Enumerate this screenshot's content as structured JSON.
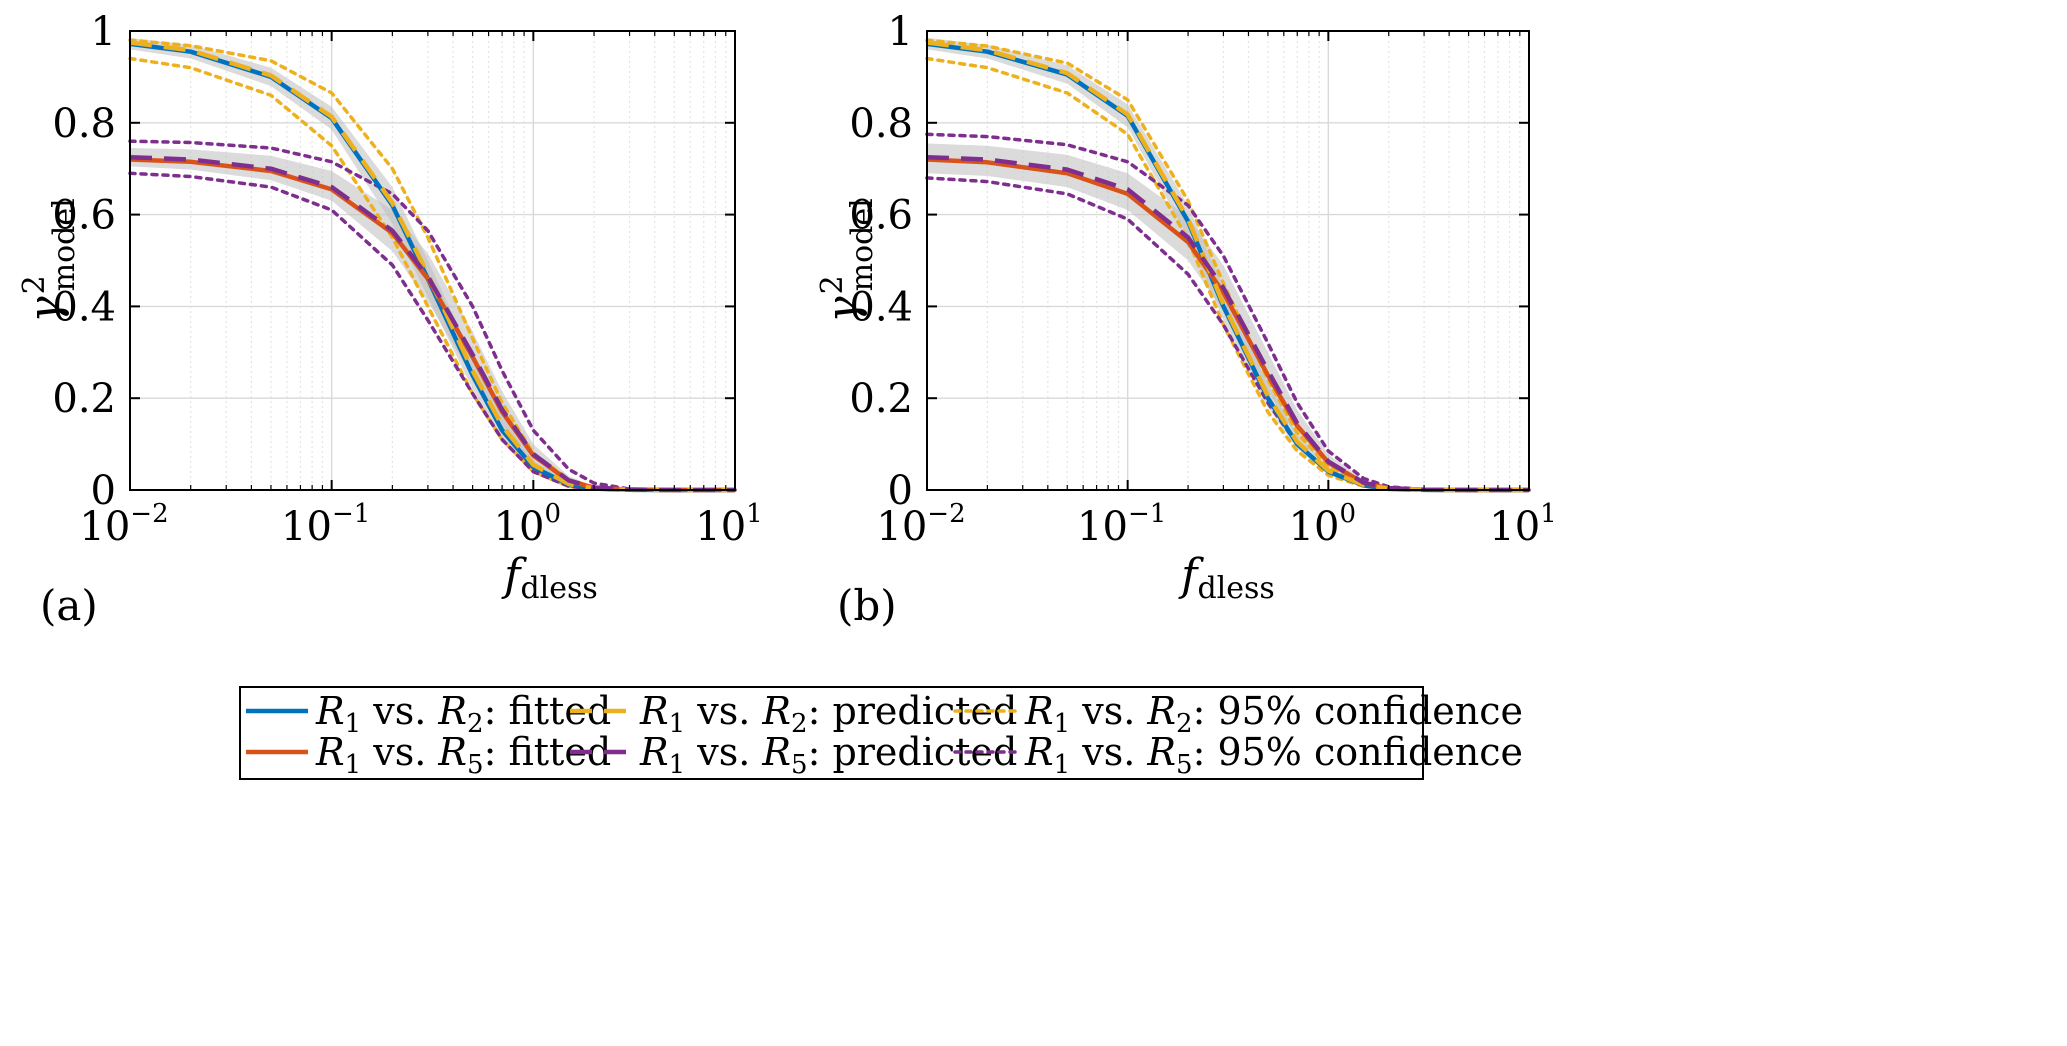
{
  "colors": {
    "r2_fitted": "#0072BD",
    "r2_predicted": "#EDB120",
    "r2_confidence": "#EDB120",
    "r5_fitted": "#D95319",
    "r5_predicted": "#7E2F8E",
    "r5_confidence": "#7E2F8E",
    "band": "#bdbdbd",
    "grid": "#d9d9d9"
  },
  "chart_data": [
    {
      "panel_label": "(a)",
      "type": "line",
      "xscale": "log",
      "xlim": [
        0.01,
        10
      ],
      "ylim": [
        0,
        1
      ],
      "xlabel": {
        "base": "f",
        "subscript": "dless"
      },
      "ylabel": {
        "base": "γ",
        "superscript": "2",
        "subscript": "model"
      },
      "x_ticks": [
        {
          "base": "10",
          "exp": "−2"
        },
        {
          "base": "10",
          "exp": "−1"
        },
        {
          "base": "10",
          "exp": "0"
        },
        {
          "base": "10",
          "exp": "1"
        }
      ],
      "y_ticks": [
        "0",
        "0.2",
        "0.4",
        "0.6",
        "0.8",
        "1"
      ],
      "y_tick_values": [
        0,
        0.2,
        0.4,
        0.6,
        0.8,
        1
      ],
      "x_sample": [
        0.01,
        0.02,
        0.05,
        0.1,
        0.2,
        0.3,
        0.5,
        0.7,
        1,
        1.5,
        2,
        3,
        5,
        10
      ],
      "series": [
        {
          "name": "R1 vs. R2: fitted",
          "style": "solid",
          "color_key": "r2_fitted",
          "values": [
            0.972,
            0.955,
            0.9,
            0.81,
            0.62,
            0.46,
            0.25,
            0.13,
            0.05,
            0.012,
            0.003,
            0.0004,
            0,
            0
          ]
        },
        {
          "name": "R1 vs. R2: predicted",
          "style": "dashed",
          "color_key": "r2_predicted",
          "values": [
            0.975,
            0.958,
            0.903,
            0.813,
            0.625,
            0.47,
            0.26,
            0.14,
            0.055,
            0.013,
            0.0035,
            0.0005,
            0,
            0
          ]
        },
        {
          "name": "R1 vs. R2: 95% confidence (upper)",
          "style": "dotted",
          "color_key": "r2_confidence",
          "values": [
            0.98,
            0.968,
            0.935,
            0.865,
            0.7,
            0.55,
            0.33,
            0.19,
            0.08,
            0.022,
            0.006,
            0.001,
            0,
            0
          ]
        },
        {
          "name": "R1 vs. R2: 95% confidence (lower)",
          "style": "dotted",
          "color_key": "r2_confidence",
          "values": [
            0.94,
            0.92,
            0.86,
            0.75,
            0.55,
            0.4,
            0.21,
            0.11,
            0.04,
            0.008,
            0.002,
            0.0003,
            0,
            0
          ]
        },
        {
          "name": "R1 vs. R5: fitted",
          "style": "solid",
          "color_key": "r5_fitted",
          "values": [
            0.72,
            0.715,
            0.695,
            0.655,
            0.56,
            0.46,
            0.29,
            0.17,
            0.075,
            0.02,
            0.005,
            0.0008,
            0,
            0
          ]
        },
        {
          "name": "R1 vs. R5: predicted",
          "style": "dashed",
          "color_key": "r5_predicted",
          "values": [
            0.725,
            0.72,
            0.7,
            0.66,
            0.565,
            0.465,
            0.295,
            0.175,
            0.078,
            0.021,
            0.0055,
            0.0009,
            0,
            0
          ]
        },
        {
          "name": "R1 vs. R5: 95% confidence (upper)",
          "style": "dotted",
          "color_key": "r5_confidence",
          "values": [
            0.76,
            0.757,
            0.745,
            0.715,
            0.645,
            0.565,
            0.4,
            0.26,
            0.13,
            0.045,
            0.015,
            0.002,
            0,
            0
          ]
        },
        {
          "name": "R1 vs. R5: 95% confidence (lower)",
          "style": "dotted",
          "color_key": "r5_confidence",
          "values": [
            0.69,
            0.683,
            0.66,
            0.61,
            0.49,
            0.37,
            0.21,
            0.11,
            0.04,
            0.008,
            0.002,
            0.0003,
            0,
            0
          ]
        }
      ],
      "bands": [
        {
          "name": "R1 vs. R2 uncertainty",
          "upper": [
            0.985,
            0.97,
            0.92,
            0.835,
            0.66,
            0.5,
            0.29,
            0.16,
            0.065,
            0.016,
            0.004,
            0.0006,
            0,
            0
          ],
          "lower": [
            0.96,
            0.94,
            0.88,
            0.785,
            0.58,
            0.42,
            0.22,
            0.11,
            0.04,
            0.009,
            0.002,
            0.0003,
            0,
            0
          ]
        },
        {
          "name": "R1 vs. R5 uncertainty",
          "upper": [
            0.745,
            0.742,
            0.728,
            0.695,
            0.61,
            0.515,
            0.345,
            0.215,
            0.1,
            0.03,
            0.008,
            0.001,
            0,
            0
          ],
          "lower": [
            0.705,
            0.698,
            0.675,
            0.63,
            0.52,
            0.41,
            0.245,
            0.135,
            0.055,
            0.013,
            0.003,
            0.0004,
            0,
            0
          ]
        }
      ]
    },
    {
      "panel_label": "(b)",
      "type": "line",
      "xscale": "log",
      "xlim": [
        0.01,
        10
      ],
      "ylim": [
        0,
        1
      ],
      "xlabel": {
        "base": "f",
        "subscript": "dless"
      },
      "ylabel": {
        "base": "γ",
        "superscript": "2",
        "subscript": "model"
      },
      "x_ticks": [
        {
          "base": "10",
          "exp": "−2"
        },
        {
          "base": "10",
          "exp": "−1"
        },
        {
          "base": "10",
          "exp": "0"
        },
        {
          "base": "10",
          "exp": "1"
        }
      ],
      "y_ticks": [
        "0",
        "0.2",
        "0.4",
        "0.6",
        "0.8",
        "1"
      ],
      "y_tick_values": [
        0,
        0.2,
        0.4,
        0.6,
        0.8,
        1
      ],
      "x_sample": [
        0.01,
        0.02,
        0.05,
        0.1,
        0.2,
        0.3,
        0.5,
        0.7,
        1,
        1.5,
        2,
        3,
        5,
        10
      ],
      "series": [
        {
          "name": "R1 vs. R2: fitted",
          "style": "solid",
          "color_key": "r2_fitted",
          "values": [
            0.972,
            0.955,
            0.905,
            0.815,
            0.585,
            0.4,
            0.2,
            0.1,
            0.04,
            0.01,
            0.0025,
            0.0003,
            0,
            0
          ]
        },
        {
          "name": "R1 vs. R2: predicted",
          "style": "dashed",
          "color_key": "r2_predicted",
          "values": [
            0.975,
            0.958,
            0.908,
            0.818,
            0.59,
            0.405,
            0.205,
            0.105,
            0.042,
            0.011,
            0.003,
            0.0004,
            0,
            0
          ]
        },
        {
          "name": "R1 vs. R2: 95% confidence (upper)",
          "style": "dotted",
          "color_key": "r2_confidence",
          "values": [
            0.98,
            0.967,
            0.93,
            0.85,
            0.63,
            0.45,
            0.24,
            0.125,
            0.05,
            0.013,
            0.0035,
            0.0005,
            0,
            0
          ]
        },
        {
          "name": "R1 vs. R2: 95% confidence (lower)",
          "style": "dotted",
          "color_key": "r2_confidence",
          "values": [
            0.94,
            0.92,
            0.865,
            0.775,
            0.545,
            0.36,
            0.17,
            0.085,
            0.032,
            0.008,
            0.002,
            0.0003,
            0,
            0
          ]
        },
        {
          "name": "R1 vs. R5: fitted",
          "style": "solid",
          "color_key": "r5_fitted",
          "values": [
            0.72,
            0.714,
            0.69,
            0.645,
            0.54,
            0.43,
            0.25,
            0.14,
            0.06,
            0.015,
            0.004,
            0.0005,
            0,
            0
          ]
        },
        {
          "name": "R1 vs. R5: predicted",
          "style": "dashed",
          "color_key": "r5_predicted",
          "values": [
            0.725,
            0.72,
            0.698,
            0.655,
            0.55,
            0.44,
            0.26,
            0.145,
            0.062,
            0.016,
            0.0042,
            0.0006,
            0,
            0
          ]
        },
        {
          "name": "R1 vs. R5: 95% confidence (upper)",
          "style": "dotted",
          "color_key": "r5_confidence",
          "values": [
            0.775,
            0.77,
            0.752,
            0.715,
            0.62,
            0.51,
            0.32,
            0.19,
            0.085,
            0.025,
            0.007,
            0.001,
            0,
            0
          ]
        },
        {
          "name": "R1 vs. R5: 95% confidence (lower)",
          "style": "dotted",
          "color_key": "r5_confidence",
          "values": [
            0.68,
            0.672,
            0.645,
            0.59,
            0.47,
            0.36,
            0.19,
            0.1,
            0.04,
            0.009,
            0.002,
            0.0003,
            0,
            0
          ]
        }
      ],
      "bands": [
        {
          "name": "R1 vs. R2 uncertainty",
          "upper": [
            0.985,
            0.97,
            0.925,
            0.84,
            0.62,
            0.44,
            0.23,
            0.12,
            0.048,
            0.012,
            0.003,
            0.0004,
            0,
            0
          ],
          "lower": [
            0.96,
            0.94,
            0.885,
            0.79,
            0.55,
            0.37,
            0.18,
            0.09,
            0.035,
            0.009,
            0.002,
            0.0003,
            0,
            0
          ]
        },
        {
          "name": "R1 vs. R5 uncertainty",
          "upper": [
            0.755,
            0.75,
            0.73,
            0.69,
            0.595,
            0.49,
            0.3,
            0.175,
            0.078,
            0.021,
            0.006,
            0.0008,
            0,
            0
          ],
          "lower": [
            0.69,
            0.684,
            0.66,
            0.61,
            0.5,
            0.39,
            0.215,
            0.115,
            0.045,
            0.011,
            0.003,
            0.0004,
            0,
            0
          ]
        }
      ]
    }
  ],
  "legend": {
    "entries": [
      {
        "color_key": "r2_fitted",
        "style": "solid",
        "a": "R",
        "a_sub": "1",
        "vs": " vs. ",
        "b": "R",
        "b_sub": "2",
        "suffix": ":  fitted"
      },
      {
        "color_key": "r2_predicted",
        "style": "dashed",
        "a": "R",
        "a_sub": "1",
        "vs": " vs. ",
        "b": "R",
        "b_sub": "2",
        "suffix": ":  predicted"
      },
      {
        "color_key": "r2_confidence",
        "style": "dotted",
        "a": "R",
        "a_sub": "1",
        "vs": " vs. ",
        "b": "R",
        "b_sub": "2",
        "suffix": ":  95% confidence"
      },
      {
        "color_key": "r5_fitted",
        "style": "solid",
        "a": "R",
        "a_sub": "1",
        "vs": " vs. ",
        "b": "R",
        "b_sub": "5",
        "suffix": ":  fitted"
      },
      {
        "color_key": "r5_predicted",
        "style": "dashed",
        "a": "R",
        "a_sub": "1",
        "vs": " vs. ",
        "b": "R",
        "b_sub": "5",
        "suffix": ":  predicted"
      },
      {
        "color_key": "r5_confidence",
        "style": "dotted",
        "a": "R",
        "a_sub": "1",
        "vs": " vs. ",
        "b": "R",
        "b_sub": "5",
        "suffix": ":  95% confidence"
      }
    ]
  }
}
